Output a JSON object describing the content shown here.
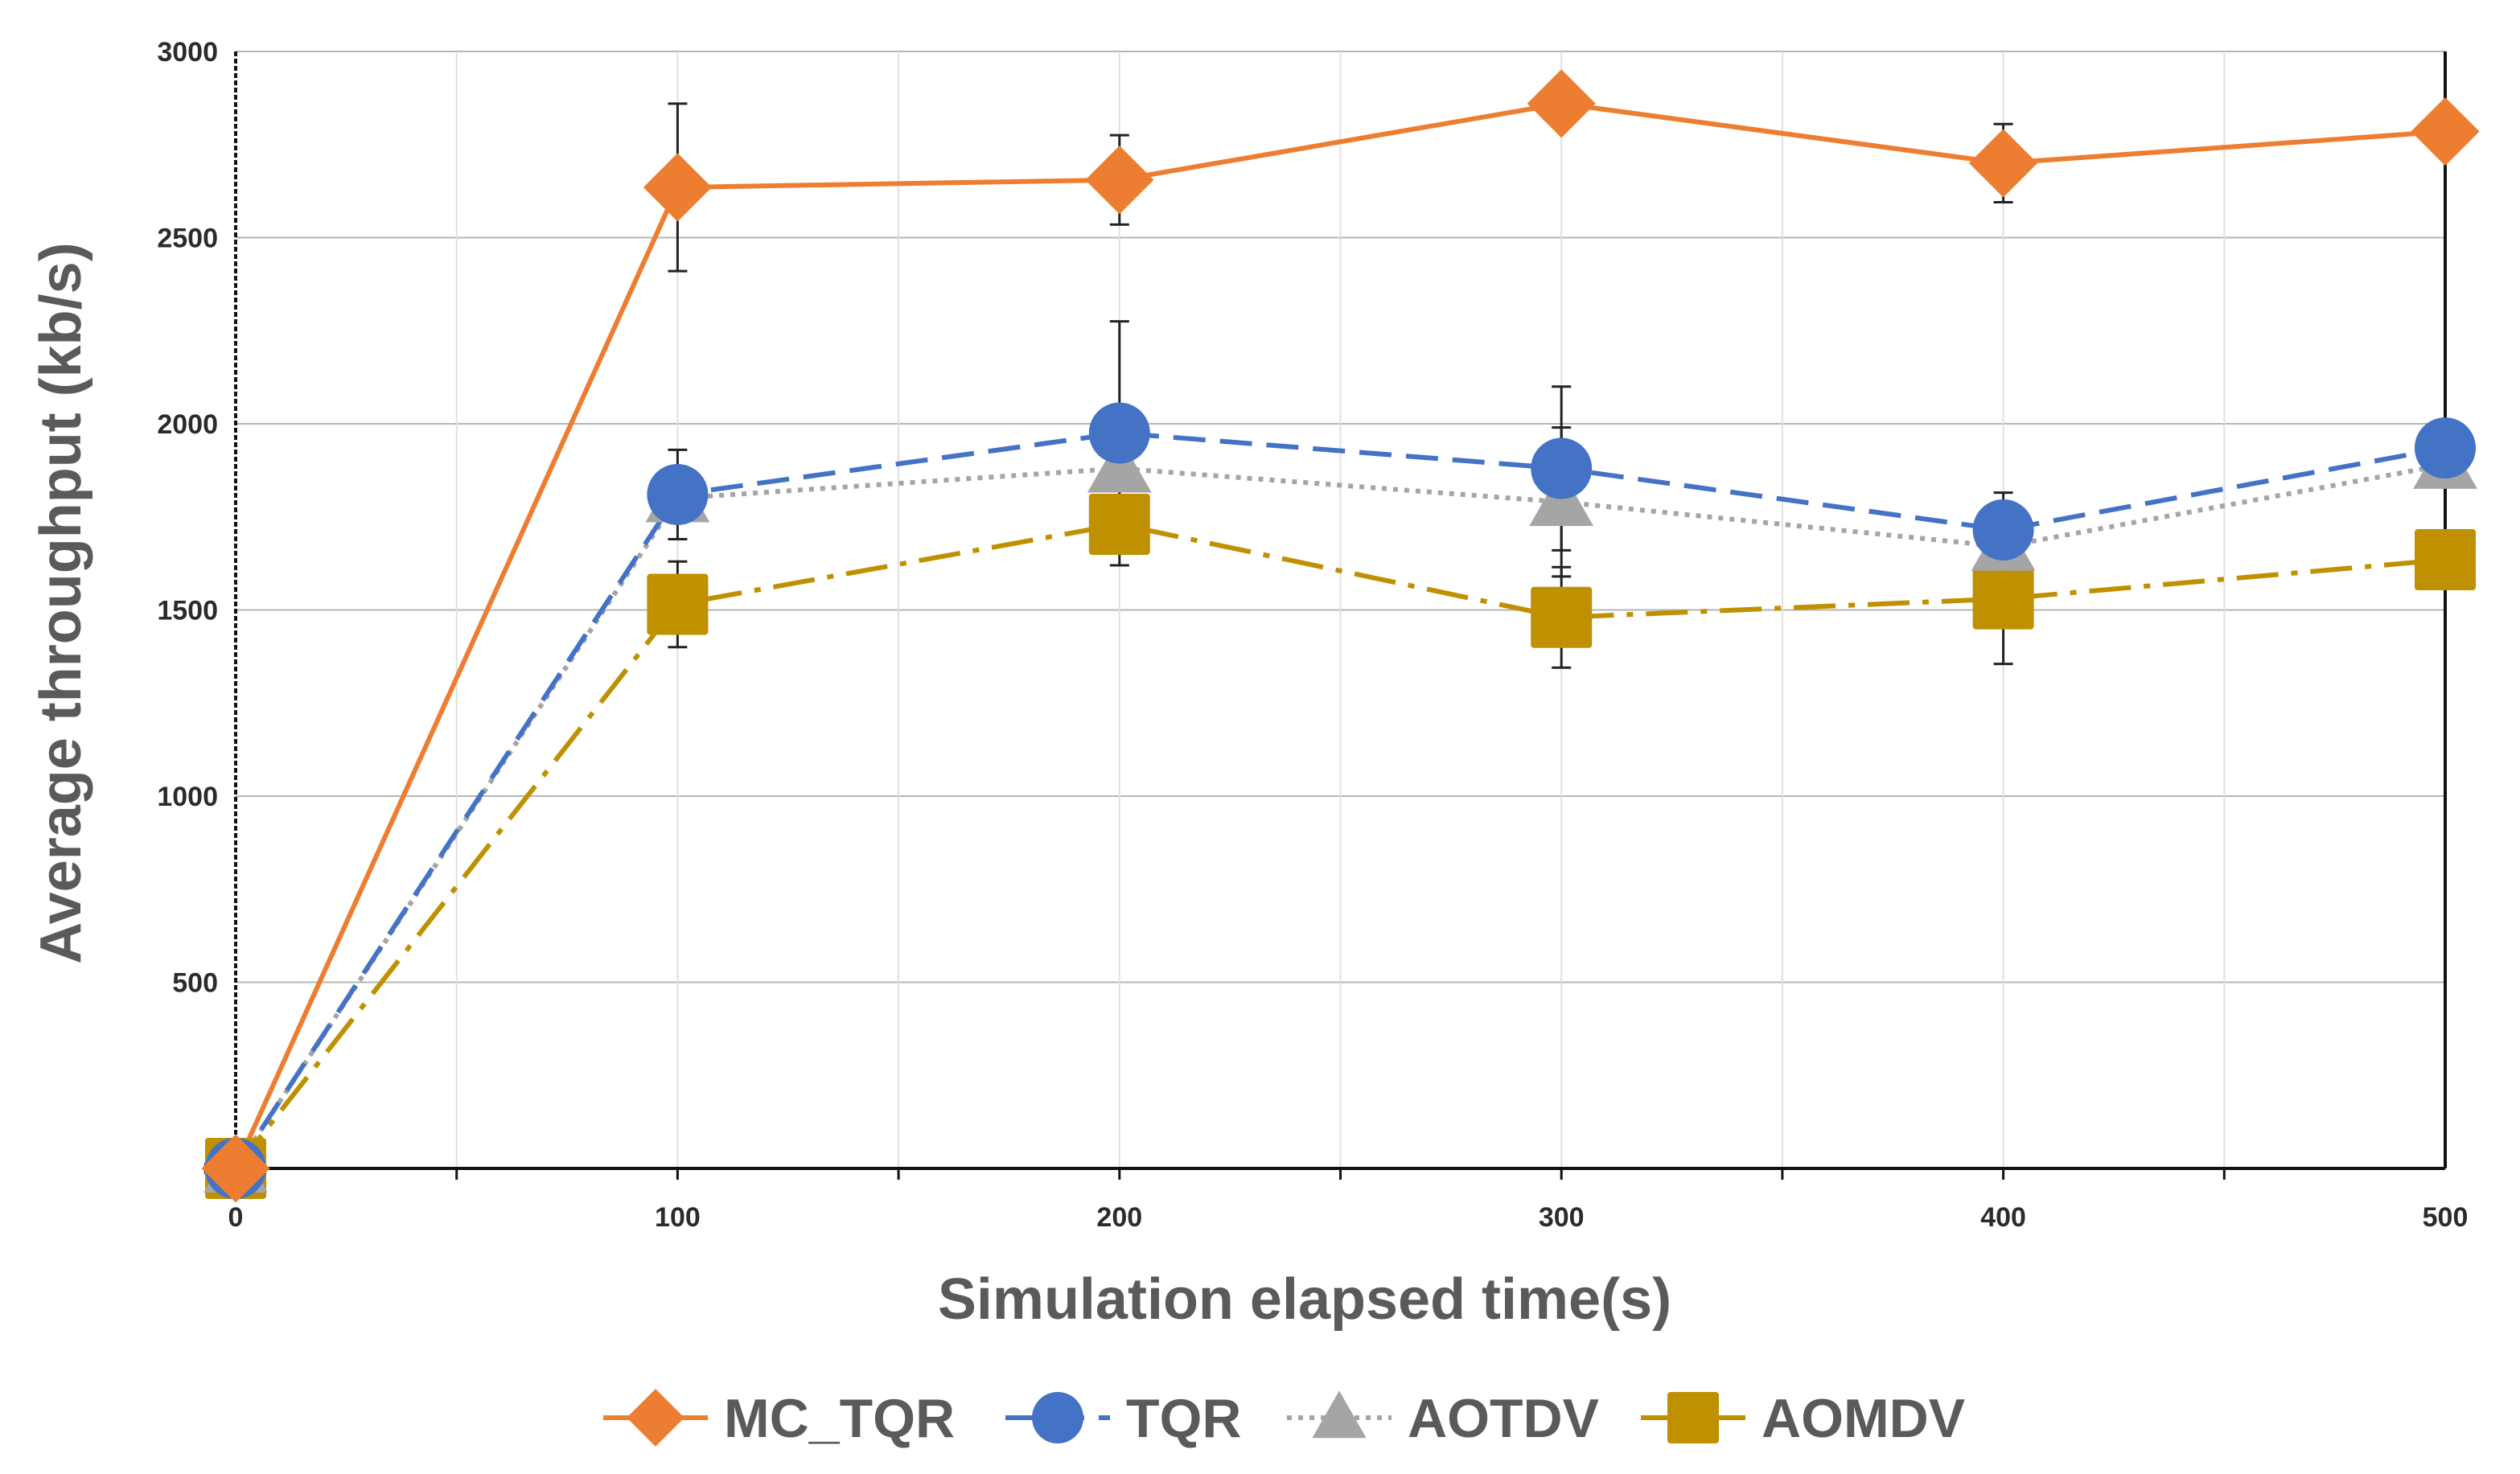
{
  "chart_data": {
    "type": "line",
    "xlabel": "Simulation elapsed time(s)",
    "ylabel": "Average throughput (kb/s)",
    "x": [
      0,
      100,
      200,
      300,
      400,
      500
    ],
    "x_ticks": [
      0,
      100,
      200,
      300,
      400,
      500
    ],
    "y_ticks": [
      0,
      500,
      1000,
      1500,
      2000,
      2500,
      3000
    ],
    "xlim": [
      0,
      500
    ],
    "ylim": [
      0,
      3000
    ],
    "grid": true,
    "legend_position": "bottom",
    "series": [
      {
        "name": "MC_TQR",
        "values": [
          0,
          2635,
          2655,
          2860,
          2700,
          2785
        ],
        "errors": [
          null,
          225,
          120,
          null,
          105,
          null
        ],
        "color": "#ED7D31",
        "line_style": "solid",
        "marker": "diamond"
      },
      {
        "name": "TQR",
        "values": [
          0,
          1810,
          1975,
          1880,
          1715,
          1935
        ],
        "errors": [
          null,
          120,
          300,
          220,
          100,
          null
        ],
        "color": "#4472C4",
        "line_style": "dashed",
        "marker": "circle"
      },
      {
        "name": "AOTDV",
        "values": [
          0,
          1800,
          1880,
          1790,
          1670,
          1890
        ],
        "errors": [
          null,
          null,
          null,
          200,
          null,
          null
        ],
        "color": "#A5A5A5",
        "line_style": "dotted",
        "marker": "triangle"
      },
      {
        "name": "AOMDV",
        "values": [
          0,
          1515,
          1730,
          1480,
          1530,
          1635
        ],
        "errors": [
          null,
          115,
          110,
          135,
          175,
          null
        ],
        "color": "#BF9000",
        "line_style": "dash-dot",
        "marker": "square"
      }
    ]
  }
}
